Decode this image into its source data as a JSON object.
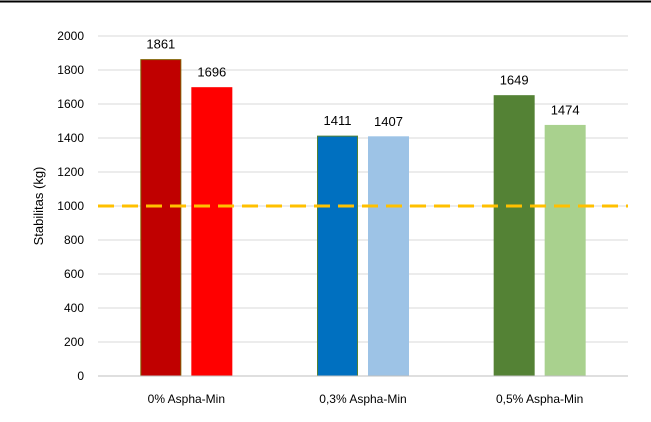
{
  "chart_data": {
    "type": "bar",
    "title": "",
    "xlabel": "",
    "ylabel": "Stabilitas (kg)",
    "ylim": [
      0,
      2000
    ],
    "yticks": [
      0,
      200,
      400,
      600,
      800,
      1000,
      1200,
      1400,
      1600,
      1800,
      2000
    ],
    "grid": true,
    "legend": "none",
    "groups": [
      {
        "category": "0% Aspha-Min",
        "bars": [
          {
            "value": 1861,
            "label": "1861",
            "color": "#C00000",
            "border": "#7F6000"
          },
          {
            "value": 1696,
            "label": "1696",
            "color": "#FF0000",
            "border": "#FF0000"
          }
        ]
      },
      {
        "category": "0,3% Aspha-Min",
        "bars": [
          {
            "value": 1411,
            "label": "1411",
            "color": "#0070C0",
            "border": "#548235"
          },
          {
            "value": 1407,
            "label": "1407",
            "color": "#9DC3E6",
            "border": "#9DC3E6"
          }
        ]
      },
      {
        "category": "0,5% Aspha-Min",
        "bars": [
          {
            "value": 1649,
            "label": "1649",
            "color": "#548235",
            "border": "#548235"
          },
          {
            "value": 1474,
            "label": "1474",
            "color": "#A9D18E",
            "border": "#A9D18E"
          }
        ]
      }
    ],
    "reference_line": {
      "value": 1000,
      "color": "#FFC000",
      "style": "dashed"
    }
  }
}
